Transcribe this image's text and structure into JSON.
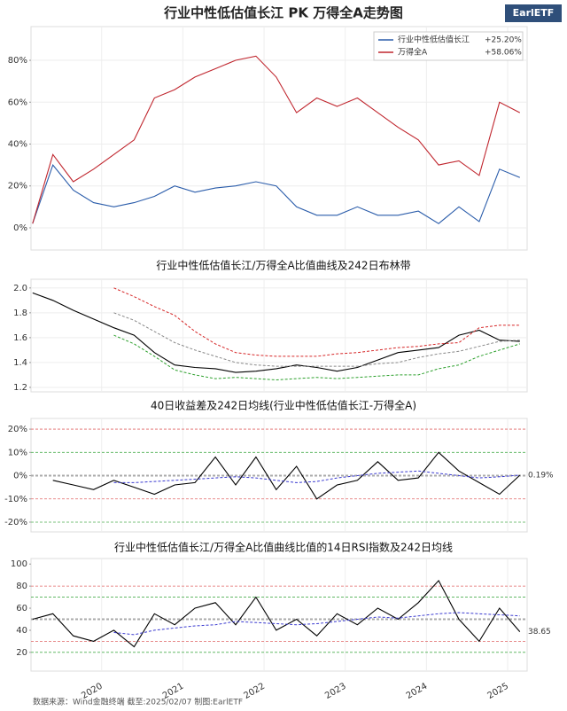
{
  "logo": "EarlETF",
  "footer": "数据来源：Wind金融终端 截至:2025/02/07 制图:EarlETF",
  "chart_data": [
    {
      "type": "line",
      "title": "行业中性低估值长江 PK 万得全A走势图",
      "x": [
        2019.15,
        2019.4,
        2019.65,
        2019.9,
        2020.15,
        2020.4,
        2020.65,
        2020.9,
        2021.15,
        2021.4,
        2021.65,
        2021.9,
        2022.15,
        2022.4,
        2022.65,
        2022.9,
        2023.15,
        2023.4,
        2023.65,
        2023.9,
        2024.15,
        2024.4,
        2024.65,
        2024.9,
        2025.15
      ],
      "xlim": [
        2019.13,
        2025.24
      ],
      "xticks": [
        2020,
        2021,
        2022,
        2023,
        2024,
        2025
      ],
      "ylim": [
        -10.6,
        96.1
      ],
      "yticks": [
        {
          "value": 0,
          "label": "0%"
        },
        {
          "value": 20,
          "label": "20%"
        },
        {
          "value": 40,
          "label": "40%"
        },
        {
          "value": 60,
          "label": "60%"
        },
        {
          "value": 80,
          "label": "80%"
        }
      ],
      "grid": true,
      "legend": "upper right",
      "series": [
        {
          "name": "行业中性低估值长江",
          "change": {
            "value": 25.2,
            "label": "+25.20%"
          },
          "color": "#2a5caa",
          "values": [
            2,
            30,
            18,
            12,
            10,
            12,
            15,
            20,
            17,
            19,
            20,
            22,
            20,
            10,
            6,
            6,
            10,
            6,
            6,
            8,
            2,
            10,
            3,
            28,
            24
          ]
        },
        {
          "name": "万得全A",
          "change": {
            "value": 58.06,
            "label": "+58.06%"
          },
          "color": "#c0262e",
          "values": [
            2,
            35,
            22,
            28,
            35,
            42,
            62,
            66,
            72,
            76,
            80,
            82,
            72,
            55,
            62,
            58,
            62,
            55,
            48,
            42,
            30,
            32,
            25,
            60,
            55
          ]
        }
      ]
    },
    {
      "type": "line",
      "title": "行业中性低估值长江/万得全A比值曲线及242日布林带",
      "x": [
        2019.15,
        2019.4,
        2019.65,
        2019.9,
        2020.15,
        2020.4,
        2020.65,
        2020.9,
        2021.15,
        2021.4,
        2021.65,
        2021.9,
        2022.15,
        2022.4,
        2022.65,
        2022.9,
        2023.15,
        2023.4,
        2023.65,
        2023.9,
        2024.15,
        2024.4,
        2024.65,
        2024.9,
        2025.15
      ],
      "xlim": [
        2019.13,
        2025.24
      ],
      "xticks": [
        2020,
        2021,
        2022,
        2023,
        2024,
        2025
      ],
      "ylim": [
        1.164,
        2.07
      ],
      "yticks": [
        1.2,
        1.4,
        1.6,
        1.8,
        {
          "value": 2,
          "label": "2.0"
        }
      ],
      "grid": true,
      "series": [
        {
          "color": "#000000",
          "dash": false,
          "values": [
            1.96,
            1.9,
            1.82,
            1.75,
            1.68,
            1.62,
            1.48,
            1.38,
            1.36,
            1.35,
            1.32,
            1.33,
            1.35,
            1.38,
            1.36,
            1.33,
            1.36,
            1.42,
            1.48,
            1.5,
            1.52,
            1.62,
            1.66,
            1.58,
            1.57
          ]
        },
        {
          "color": "#888888",
          "dash": true,
          "values": [
            null,
            null,
            null,
            null,
            1.8,
            1.74,
            1.65,
            1.56,
            1.5,
            1.45,
            1.4,
            1.38,
            1.37,
            1.37,
            1.37,
            1.37,
            1.37,
            1.39,
            1.4,
            1.44,
            1.47,
            1.49,
            1.53,
            1.57,
            1.58
          ]
        },
        {
          "color": "#d62728",
          "dash": true,
          "values": [
            null,
            null,
            null,
            null,
            2.0,
            1.93,
            1.85,
            1.78,
            1.65,
            1.55,
            1.48,
            1.46,
            1.45,
            1.45,
            1.45,
            1.47,
            1.48,
            1.5,
            1.52,
            1.53,
            1.55,
            1.56,
            1.68,
            1.7,
            1.7
          ]
        },
        {
          "color": "#2ca02c",
          "dash": true,
          "values": [
            null,
            null,
            null,
            null,
            1.62,
            1.55,
            1.45,
            1.34,
            1.3,
            1.27,
            1.28,
            1.27,
            1.26,
            1.27,
            1.28,
            1.27,
            1.28,
            1.29,
            1.3,
            1.3,
            1.35,
            1.38,
            1.45,
            1.5,
            1.55
          ]
        }
      ]
    },
    {
      "type": "line",
      "title": "40日收益差及242日均线(行业中性低估值长江-万得全A)",
      "x": [
        2019.15,
        2019.4,
        2019.65,
        2019.9,
        2020.15,
        2020.4,
        2020.65,
        2020.9,
        2021.15,
        2021.4,
        2021.65,
        2021.9,
        2022.15,
        2022.4,
        2022.65,
        2022.9,
        2023.15,
        2023.4,
        2023.65,
        2023.9,
        2024.15,
        2024.4,
        2024.65,
        2024.9,
        2025.15
      ],
      "xlim": [
        2019.13,
        2025.24
      ],
      "xticks": [
        2020,
        2021,
        2022,
        2023,
        2024,
        2025
      ],
      "ylim": [
        -24.2,
        24.6
      ],
      "yticks": [
        {
          "value": -20,
          "label": "-20%"
        },
        {
          "value": -10,
          "label": "-10%"
        },
        {
          "value": 0,
          "label": "0%"
        },
        {
          "value": 10,
          "label": "10%"
        },
        {
          "value": 20,
          "label": "20%"
        }
      ],
      "grid": false,
      "ref_lines": [
        {
          "value": 20,
          "color": "#e06666"
        },
        {
          "value": 10,
          "color": "#4caf50"
        },
        {
          "value": 0,
          "color": "#aaaaaa"
        },
        {
          "value": -10,
          "color": "#e06666"
        },
        {
          "value": -20,
          "color": "#4caf50"
        }
      ],
      "annotation": {
        "value": 0.19,
        "label": "0.19%"
      },
      "series": [
        {
          "color": "#000000",
          "dash": false,
          "values": [
            null,
            -2,
            -4,
            -6,
            -2,
            -5,
            -8,
            -4,
            -3,
            8,
            -4,
            8,
            -6,
            4,
            -10,
            -4,
            -2,
            6,
            -2,
            -1,
            10,
            2,
            -3,
            -8,
            0.19
          ]
        },
        {
          "color": "#3b3bd0",
          "dash": true,
          "values": [
            null,
            null,
            null,
            null,
            -3,
            -3,
            -2.5,
            -2,
            -1.5,
            -1,
            -0.5,
            -1,
            -2,
            -3,
            -2.5,
            -1,
            0,
            1,
            1.5,
            2,
            1,
            0,
            -1,
            -0.5,
            0.19
          ]
        }
      ]
    },
    {
      "type": "line",
      "title": "行业中性低估值长江/万得全A比值曲线比值的14日RSI指数及242日均线",
      "x": [
        2019.15,
        2019.4,
        2019.65,
        2019.9,
        2020.15,
        2020.4,
        2020.65,
        2020.9,
        2021.15,
        2021.4,
        2021.65,
        2021.9,
        2022.15,
        2022.4,
        2022.65,
        2022.9,
        2023.15,
        2023.4,
        2023.65,
        2023.9,
        2024.15,
        2024.4,
        2024.65,
        2024.9,
        2025.15
      ],
      "xlim": [
        2019.13,
        2025.24
      ],
      "xticks": [
        2020,
        2021,
        2022,
        2023,
        2024,
        2025
      ],
      "ylim": [
        3,
        105
      ],
      "yticks": [
        20,
        40,
        60,
        80,
        100
      ],
      "grid": false,
      "ref_lines": [
        {
          "value": 80,
          "color": "#e06666"
        },
        {
          "value": 70,
          "color": "#4caf50"
        },
        {
          "value": 50,
          "color": "#aaaaaa"
        },
        {
          "value": 30,
          "color": "#e06666"
        },
        {
          "value": 20,
          "color": "#4caf50"
        }
      ],
      "annotation": {
        "value": 38.65,
        "label": "38.65"
      },
      "series": [
        {
          "color": "#000000",
          "dash": false,
          "values": [
            50,
            55,
            35,
            30,
            40,
            25,
            55,
            45,
            60,
            65,
            45,
            70,
            40,
            50,
            35,
            55,
            45,
            60,
            50,
            65,
            85,
            50,
            30,
            60,
            38.65
          ]
        },
        {
          "color": "#3b3bd0",
          "dash": true,
          "values": [
            null,
            null,
            null,
            null,
            38,
            36,
            40,
            42,
            44,
            45,
            48,
            47,
            46,
            45,
            46,
            48,
            50,
            52,
            51,
            53,
            55,
            56,
            55,
            54,
            53
          ]
        }
      ]
    }
  ]
}
